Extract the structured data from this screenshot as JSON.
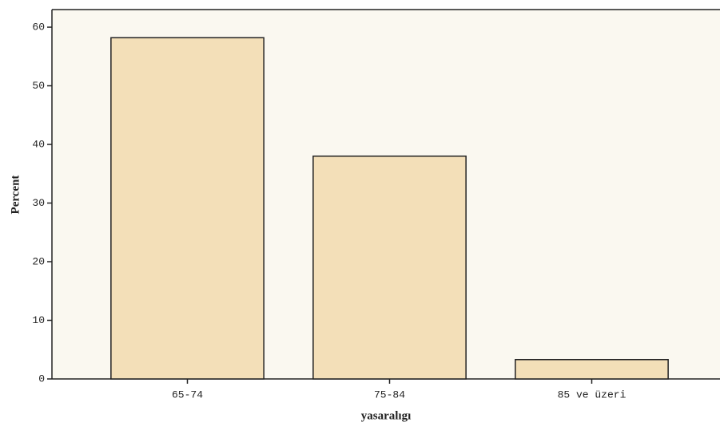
{
  "chart_data": {
    "type": "bar",
    "x_label": "yasaralıgı",
    "y_label": "Percent",
    "categories": [
      "65-74",
      "75-84",
      "85 ve üzeri"
    ],
    "values": [
      58.2,
      38.0,
      3.3
    ],
    "color": "#f3dfb8",
    "ylim": [
      0,
      63
    ],
    "yticks": [
      0,
      10,
      20,
      30,
      40,
      50,
      60
    ]
  }
}
